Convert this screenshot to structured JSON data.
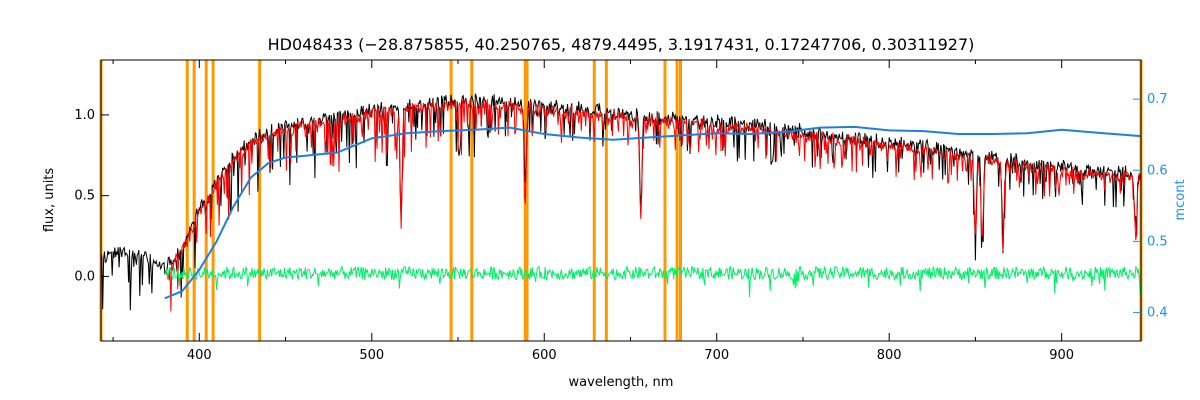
{
  "chart_data": {
    "type": "line",
    "title": "HD048433   (−28.875855, 40.250765, 4879.4495, 3.1917431, 0.17247706, 0.30311927)",
    "xlabel": "wavelength, nm",
    "ylabel": "flux, units",
    "y2label": "mcont",
    "xlim": [
      343,
      946
    ],
    "ylim": [
      -0.4,
      1.34
    ],
    "y2lim": [
      0.36,
      0.755
    ],
    "xticks": [
      400,
      500,
      600,
      700,
      800,
      900
    ],
    "yticks": [
      0.0,
      0.5,
      1.0
    ],
    "y2ticks": [
      0.4,
      0.5,
      0.6,
      0.7
    ],
    "xtick_labels": [
      "400",
      "500",
      "600",
      "700",
      "800",
      "900"
    ],
    "ytick_labels": [
      "0.0",
      "0.5",
      "1.0"
    ],
    "y2tick_labels": [
      "0.4",
      "0.5",
      "0.6",
      "0.7"
    ],
    "colors": {
      "observed": "#000000",
      "model": "#ff0000",
      "residual": "#00ee66",
      "continuum": "#1f7fe0",
      "masks": "#ff9900",
      "axis2": "#1f8fff"
    },
    "mask_lines": [
      343,
      393,
      397,
      404,
      408,
      435,
      546,
      558,
      589,
      590,
      629,
      636,
      670,
      677,
      679,
      946
    ],
    "series": [
      {
        "key": "observed",
        "x": [
          343,
          360,
          380,
          390,
          400,
          410,
          420,
          430,
          440,
          450,
          460,
          480,
          500,
          520,
          540,
          560,
          575,
          590,
          610,
          630,
          650,
          670,
          700,
          730,
          760,
          790,
          820,
          850,
          880,
          910,
          940,
          946
        ],
        "y": [
          0.16,
          0.2,
          0.08,
          0.22,
          0.45,
          0.62,
          0.78,
          0.88,
          0.92,
          0.96,
          0.98,
          1.03,
          1.07,
          1.1,
          1.11,
          1.12,
          1.12,
          1.1,
          1.08,
          1.06,
          1.04,
          1.02,
          0.99,
          0.96,
          0.92,
          0.88,
          0.84,
          0.79,
          0.74,
          0.7,
          0.67,
          0.66
        ]
      },
      {
        "key": "model",
        "x": [
          380,
          390,
          400,
          410,
          420,
          430,
          440,
          450,
          460,
          480,
          500,
          520,
          540,
          560,
          575,
          590,
          610,
          630,
          650,
          670,
          700,
          730,
          760,
          790,
          820,
          850,
          880,
          910,
          940,
          946
        ],
        "y": [
          0.05,
          0.18,
          0.42,
          0.6,
          0.75,
          0.85,
          0.9,
          0.93,
          0.96,
          1.0,
          1.04,
          1.07,
          1.08,
          1.09,
          1.09,
          1.07,
          1.05,
          1.03,
          1.01,
          0.99,
          0.96,
          0.93,
          0.89,
          0.85,
          0.81,
          0.76,
          0.71,
          0.67,
          0.64,
          0.63
        ]
      },
      {
        "key": "continuum",
        "axis": "y2",
        "x": [
          380,
          390,
          400,
          410,
          420,
          430,
          440,
          450,
          460,
          480,
          500,
          520,
          540,
          560,
          580,
          600,
          620,
          640,
          660,
          680,
          700,
          720,
          740,
          760,
          780,
          800,
          820,
          840,
          860,
          880,
          900,
          920,
          946
        ],
        "y": [
          0.42,
          0.43,
          0.46,
          0.5,
          0.55,
          0.59,
          0.61,
          0.618,
          0.62,
          0.625,
          0.645,
          0.652,
          0.655,
          0.657,
          0.66,
          0.651,
          0.646,
          0.643,
          0.646,
          0.649,
          0.652,
          0.651,
          0.654,
          0.66,
          0.661,
          0.656,
          0.655,
          0.651,
          0.651,
          0.652,
          0.657,
          0.653,
          0.648
        ]
      },
      {
        "key": "residual",
        "x": [
          380,
          946
        ],
        "y": [
          0.02,
          0.02
        ],
        "noise_amplitude": 0.05
      }
    ],
    "absorption_features": [
      {
        "x": 517,
        "depth": 0.66
      },
      {
        "x": 589,
        "depth": 0.52
      },
      {
        "x": 656,
        "depth": 0.62
      },
      {
        "x": 850,
        "depth": 0.5
      },
      {
        "x": 854,
        "depth": 0.48
      },
      {
        "x": 866,
        "depth": 0.5
      },
      {
        "x": 943,
        "depth": 0.25
      }
    ]
  }
}
